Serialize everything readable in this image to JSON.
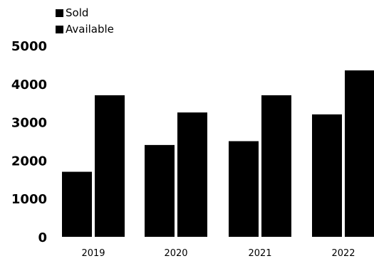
{
  "chart_data": {
    "type": "bar",
    "categories": [
      "2019",
      "2020",
      "2021",
      "2022"
    ],
    "series": [
      {
        "name": "Sold",
        "values": [
          1700,
          2400,
          2500,
          3200
        ],
        "color": "#000000"
      },
      {
        "name": "Available",
        "values": [
          3700,
          3250,
          3700,
          4350
        ],
        "color": "#000000"
      }
    ],
    "ylim": [
      0,
      5000
    ],
    "yticks": [
      "0",
      "1000",
      "2000",
      "3000",
      "4000",
      "5000"
    ],
    "grid": false,
    "legend_position": "top-left"
  }
}
